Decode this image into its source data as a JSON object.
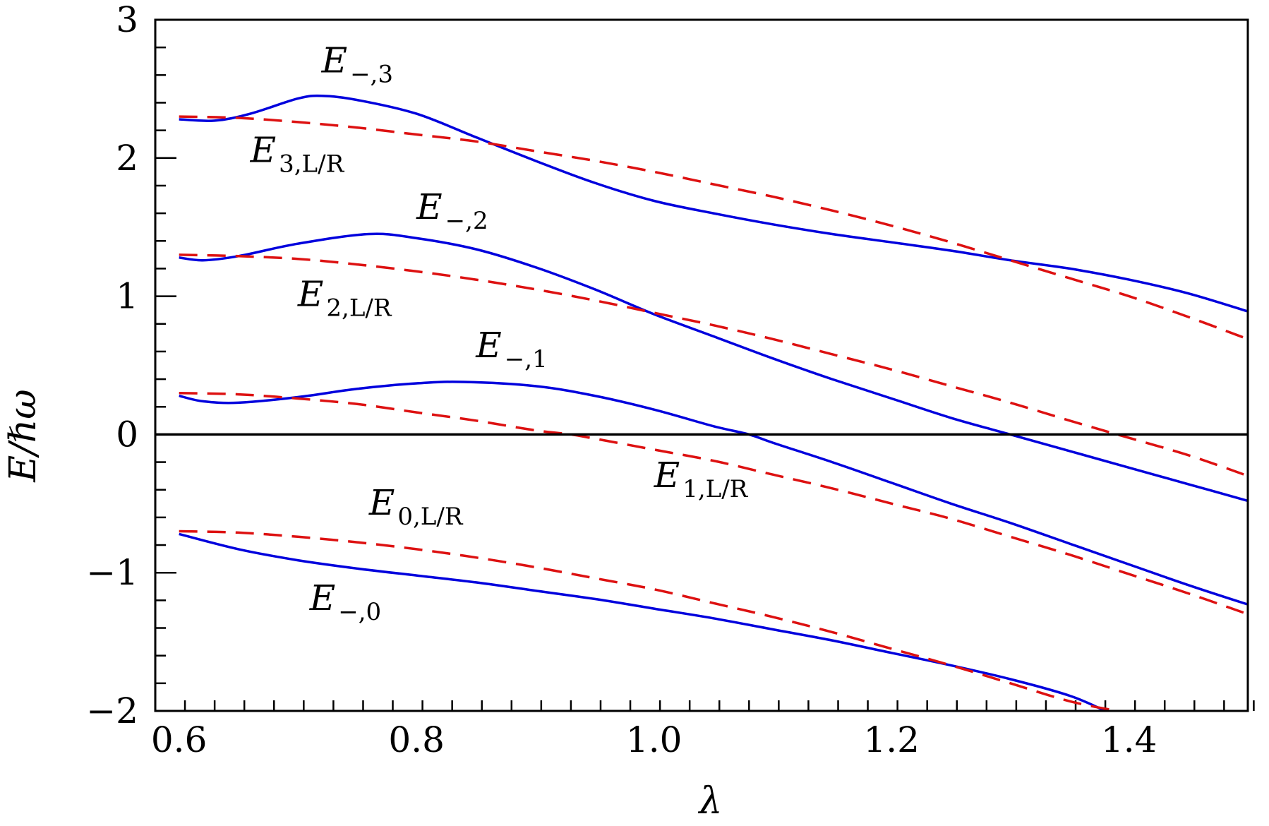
{
  "chart_data": {
    "type": "line",
    "title": "",
    "xlabel": "λ",
    "ylabel": "E/ℏω",
    "xlim": [
      0.58,
      1.5
    ],
    "ylim": [
      -2,
      3
    ],
    "x_ticks": [
      0.6,
      0.8,
      1.0,
      1.2,
      1.4
    ],
    "x_tick_labels": [
      "0.6",
      "0.8",
      "1.0",
      "1.2",
      "1.4"
    ],
    "y_ticks": [
      -2,
      -1,
      0,
      1,
      2,
      3
    ],
    "y_tick_labels": [
      "−2",
      "−1",
      "0",
      "1",
      "2",
      "3"
    ],
    "zero_line": true,
    "colors": {
      "solid": "#0000dd",
      "dashed": "#dd1111",
      "axis": "#000000"
    },
    "series": [
      {
        "name": "E_{-,0}",
        "style": "solid",
        "color": "#0000dd",
        "x": [
          0.6,
          0.65,
          0.7,
          0.75,
          0.8,
          0.85,
          0.9,
          0.95,
          1.0,
          1.05,
          1.1,
          1.15,
          1.2,
          1.25,
          1.3,
          1.35,
          1.38
        ],
        "values": [
          -0.72,
          -0.83,
          -0.91,
          -0.97,
          -1.02,
          -1.07,
          -1.13,
          -1.19,
          -1.26,
          -1.33,
          -1.41,
          -1.49,
          -1.58,
          -1.67,
          -1.77,
          -1.89,
          -2.0
        ]
      },
      {
        "name": "E_{0,L/R}",
        "style": "dashed",
        "color": "#dd1111",
        "x": [
          0.6,
          0.65,
          0.7,
          0.75,
          0.8,
          0.85,
          0.9,
          0.95,
          1.0,
          1.05,
          1.1,
          1.15,
          1.2,
          1.25,
          1.3,
          1.35,
          1.39
        ],
        "values": [
          -0.7,
          -0.71,
          -0.74,
          -0.78,
          -0.83,
          -0.89,
          -0.96,
          -1.04,
          -1.12,
          -1.22,
          -1.32,
          -1.43,
          -1.55,
          -1.67,
          -1.8,
          -1.93,
          -2.0
        ]
      },
      {
        "name": "E_{-,1}",
        "style": "solid",
        "color": "#0000dd",
        "x": [
          0.6,
          0.62,
          0.65,
          0.7,
          0.75,
          0.8,
          0.84,
          0.9,
          0.95,
          1.0,
          1.05,
          1.08,
          1.1,
          1.15,
          1.2,
          1.25,
          1.3,
          1.35,
          1.4,
          1.45,
          1.5
        ],
        "values": [
          0.28,
          0.24,
          0.23,
          0.27,
          0.33,
          0.37,
          0.38,
          0.35,
          0.28,
          0.18,
          0.06,
          0.0,
          -0.06,
          -0.2,
          -0.35,
          -0.5,
          -0.64,
          -0.79,
          -0.94,
          -1.09,
          -1.23
        ]
      },
      {
        "name": "E_{1,L/R}",
        "style": "dashed",
        "color": "#dd1111",
        "x": [
          0.6,
          0.65,
          0.7,
          0.75,
          0.8,
          0.85,
          0.9,
          0.93,
          0.95,
          1.0,
          1.05,
          1.1,
          1.15,
          1.2,
          1.25,
          1.3,
          1.35,
          1.4,
          1.45,
          1.5
        ],
        "values": [
          0.3,
          0.29,
          0.26,
          0.22,
          0.16,
          0.1,
          0.03,
          0.0,
          -0.03,
          -0.11,
          -0.19,
          -0.29,
          -0.39,
          -0.5,
          -0.61,
          -0.74,
          -0.87,
          -1.01,
          -1.15,
          -1.3
        ]
      },
      {
        "name": "E_{-,2}",
        "style": "solid",
        "color": "#0000dd",
        "x": [
          0.6,
          0.62,
          0.65,
          0.7,
          0.76,
          0.8,
          0.85,
          0.9,
          0.95,
          1.0,
          1.05,
          1.1,
          1.15,
          1.2,
          1.25,
          1.3,
          1.35,
          1.4,
          1.45,
          1.5
        ],
        "values": [
          1.28,
          1.26,
          1.29,
          1.38,
          1.45,
          1.42,
          1.34,
          1.21,
          1.05,
          0.87,
          0.71,
          0.55,
          0.4,
          0.26,
          0.12,
          0.0,
          -0.12,
          -0.24,
          -0.36,
          -0.48
        ]
      },
      {
        "name": "E_{2,L/R}",
        "style": "dashed",
        "color": "#dd1111",
        "x": [
          0.6,
          0.65,
          0.7,
          0.75,
          0.8,
          0.85,
          0.9,
          0.95,
          1.0,
          1.05,
          1.1,
          1.15,
          1.2,
          1.25,
          1.3,
          1.35,
          1.39,
          1.45,
          1.5
        ],
        "values": [
          1.3,
          1.29,
          1.27,
          1.23,
          1.18,
          1.12,
          1.05,
          0.97,
          0.88,
          0.79,
          0.69,
          0.58,
          0.47,
          0.35,
          0.23,
          0.1,
          0.0,
          -0.15,
          -0.3
        ]
      },
      {
        "name": "E_{-,3}",
        "style": "solid",
        "color": "#0000dd",
        "x": [
          0.6,
          0.63,
          0.66,
          0.7,
          0.72,
          0.75,
          0.8,
          0.85,
          0.9,
          0.95,
          1.0,
          1.05,
          1.1,
          1.15,
          1.2,
          1.25,
          1.3,
          1.35,
          1.4,
          1.45,
          1.5
        ],
        "values": [
          2.28,
          2.27,
          2.32,
          2.43,
          2.45,
          2.42,
          2.32,
          2.15,
          1.98,
          1.82,
          1.69,
          1.6,
          1.52,
          1.45,
          1.39,
          1.33,
          1.26,
          1.2,
          1.12,
          1.02,
          0.89
        ]
      },
      {
        "name": "E_{3,L/R}",
        "style": "dashed",
        "color": "#dd1111",
        "x": [
          0.6,
          0.65,
          0.7,
          0.75,
          0.8,
          0.85,
          0.9,
          0.95,
          1.0,
          1.05,
          1.1,
          1.15,
          1.2,
          1.25,
          1.3,
          1.35,
          1.4,
          1.45,
          1.5
        ],
        "values": [
          2.3,
          2.29,
          2.26,
          2.22,
          2.17,
          2.12,
          2.05,
          1.98,
          1.9,
          1.81,
          1.72,
          1.62,
          1.51,
          1.39,
          1.26,
          1.13,
          1.0,
          0.85,
          0.69
        ]
      }
    ],
    "annotations": [
      {
        "main": "E",
        "sub": "−,3",
        "x": 0.72,
        "y": 2.62
      },
      {
        "main": "E",
        "sub": "3,L/R",
        "x": 0.66,
        "y": 1.97
      },
      {
        "main": "E",
        "sub": "−,2",
        "x": 0.8,
        "y": 1.56
      },
      {
        "main": "E",
        "sub": "2,L/R",
        "x": 0.7,
        "y": 0.93
      },
      {
        "main": "E",
        "sub": "−,1",
        "x": 0.85,
        "y": 0.56
      },
      {
        "main": "E",
        "sub": "1,L/R",
        "x": 1.0,
        "y": -0.38
      },
      {
        "main": "E",
        "sub": "0,L/R",
        "x": 0.76,
        "y": -0.58
      },
      {
        "main": "E",
        "sub": "−,0",
        "x": 0.71,
        "y": -1.27
      }
    ]
  }
}
